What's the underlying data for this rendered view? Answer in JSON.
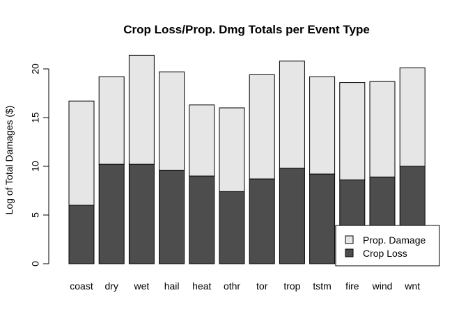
{
  "chart_data": {
    "type": "bar",
    "stacked": true,
    "title": "Crop Loss/Prop. Dmg Totals per Event Type",
    "xlabel": "",
    "ylabel": "Log of Total Damages ($)",
    "ylim": [
      0,
      22
    ],
    "yticks": [
      0,
      5,
      10,
      15,
      20
    ],
    "categories": [
      "coast",
      "dry",
      "wet",
      "hail",
      "heat",
      "othr",
      "tor",
      "trop",
      "tstm",
      "fire",
      "wind",
      "wnt"
    ],
    "series": [
      {
        "name": "Crop Loss",
        "color": "#4d4d4d",
        "values": [
          6.0,
          10.2,
          10.2,
          9.6,
          9.0,
          7.4,
          8.7,
          9.8,
          9.2,
          8.6,
          8.9,
          10.0
        ]
      },
      {
        "name": "Prop. Damage",
        "color": "#e6e6e6",
        "values": [
          10.7,
          9.0,
          11.2,
          10.1,
          7.3,
          8.6,
          10.7,
          11.0,
          10.0,
          10.0,
          9.8,
          10.1
        ]
      }
    ],
    "legend": {
      "position": "bottom-right",
      "entries": [
        "Prop. Damage",
        "Crop Loss"
      ]
    },
    "grid": false
  }
}
